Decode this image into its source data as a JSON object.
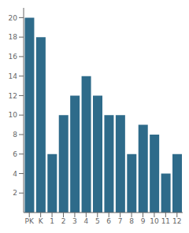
{
  "chart_data": {
    "type": "bar",
    "categories": [
      "PK",
      "K",
      "1",
      "2",
      "3",
      "4",
      "5",
      "6",
      "7",
      "8",
      "9",
      "10",
      "11",
      "12"
    ],
    "values": [
      20,
      18,
      6,
      10,
      12,
      14,
      12,
      10,
      10,
      6,
      9,
      8,
      4,
      6
    ],
    "color": "#2e6b8a",
    "ylim": [
      0,
      21
    ],
    "yticks": [
      2,
      4,
      6,
      8,
      10,
      12,
      14,
      16,
      18,
      20
    ],
    "grid": false
  }
}
